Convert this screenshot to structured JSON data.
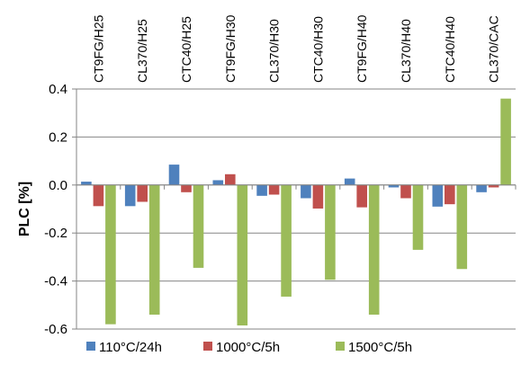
{
  "chart_data": {
    "type": "bar",
    "categories": [
      "CT9FG/H25",
      "CL370/H25",
      "CTC40/H25",
      "CT9FG/H30",
      "CL370/H30",
      "CTC40/H30",
      "CT9FG/H40",
      "CL370/H40",
      "CTC40/H40",
      "CL370/CAC"
    ],
    "series": [
      {
        "name": "110°C/24h",
        "color": "#4F81BD",
        "values": [
          0.014,
          -0.088,
          0.085,
          0.02,
          -0.045,
          -0.055,
          0.027,
          -0.01,
          -0.09,
          -0.03
        ]
      },
      {
        "name": "1000°C/5h",
        "color": "#C0504D",
        "values": [
          -0.088,
          -0.07,
          -0.03,
          0.045,
          -0.04,
          -0.098,
          -0.093,
          -0.055,
          -0.08,
          -0.01
        ]
      },
      {
        "name": "1500°C/5h",
        "color": "#9BBB59",
        "values": [
          -0.58,
          -0.54,
          -0.345,
          -0.585,
          -0.465,
          -0.395,
          -0.54,
          -0.27,
          -0.35,
          0.36
        ]
      }
    ],
    "ylabel": "PLC [%]",
    "xlabel": "",
    "ylim": [
      -0.6,
      0.4
    ],
    "yticks": [
      "-0.6",
      "-0.4",
      "-0.2",
      "0.0",
      "0.2",
      "0.4"
    ],
    "grid": true,
    "category_labels_position": "top",
    "legend_position": "bottom"
  }
}
